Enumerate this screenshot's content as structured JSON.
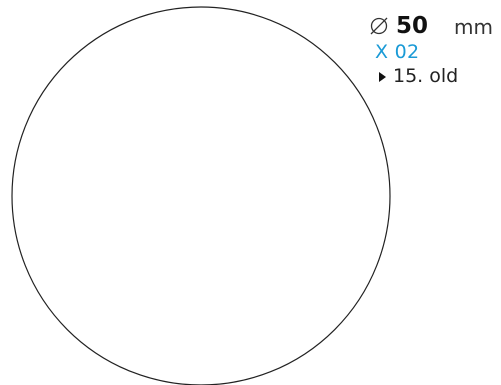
{
  "dimension": {
    "icon": "diameter-icon",
    "value": "50",
    "unit": "mm"
  },
  "code": {
    "label": "X 02",
    "color": "#1a9ad6"
  },
  "page_reference": {
    "icon": "triangle-right-icon",
    "text": "15. old"
  }
}
